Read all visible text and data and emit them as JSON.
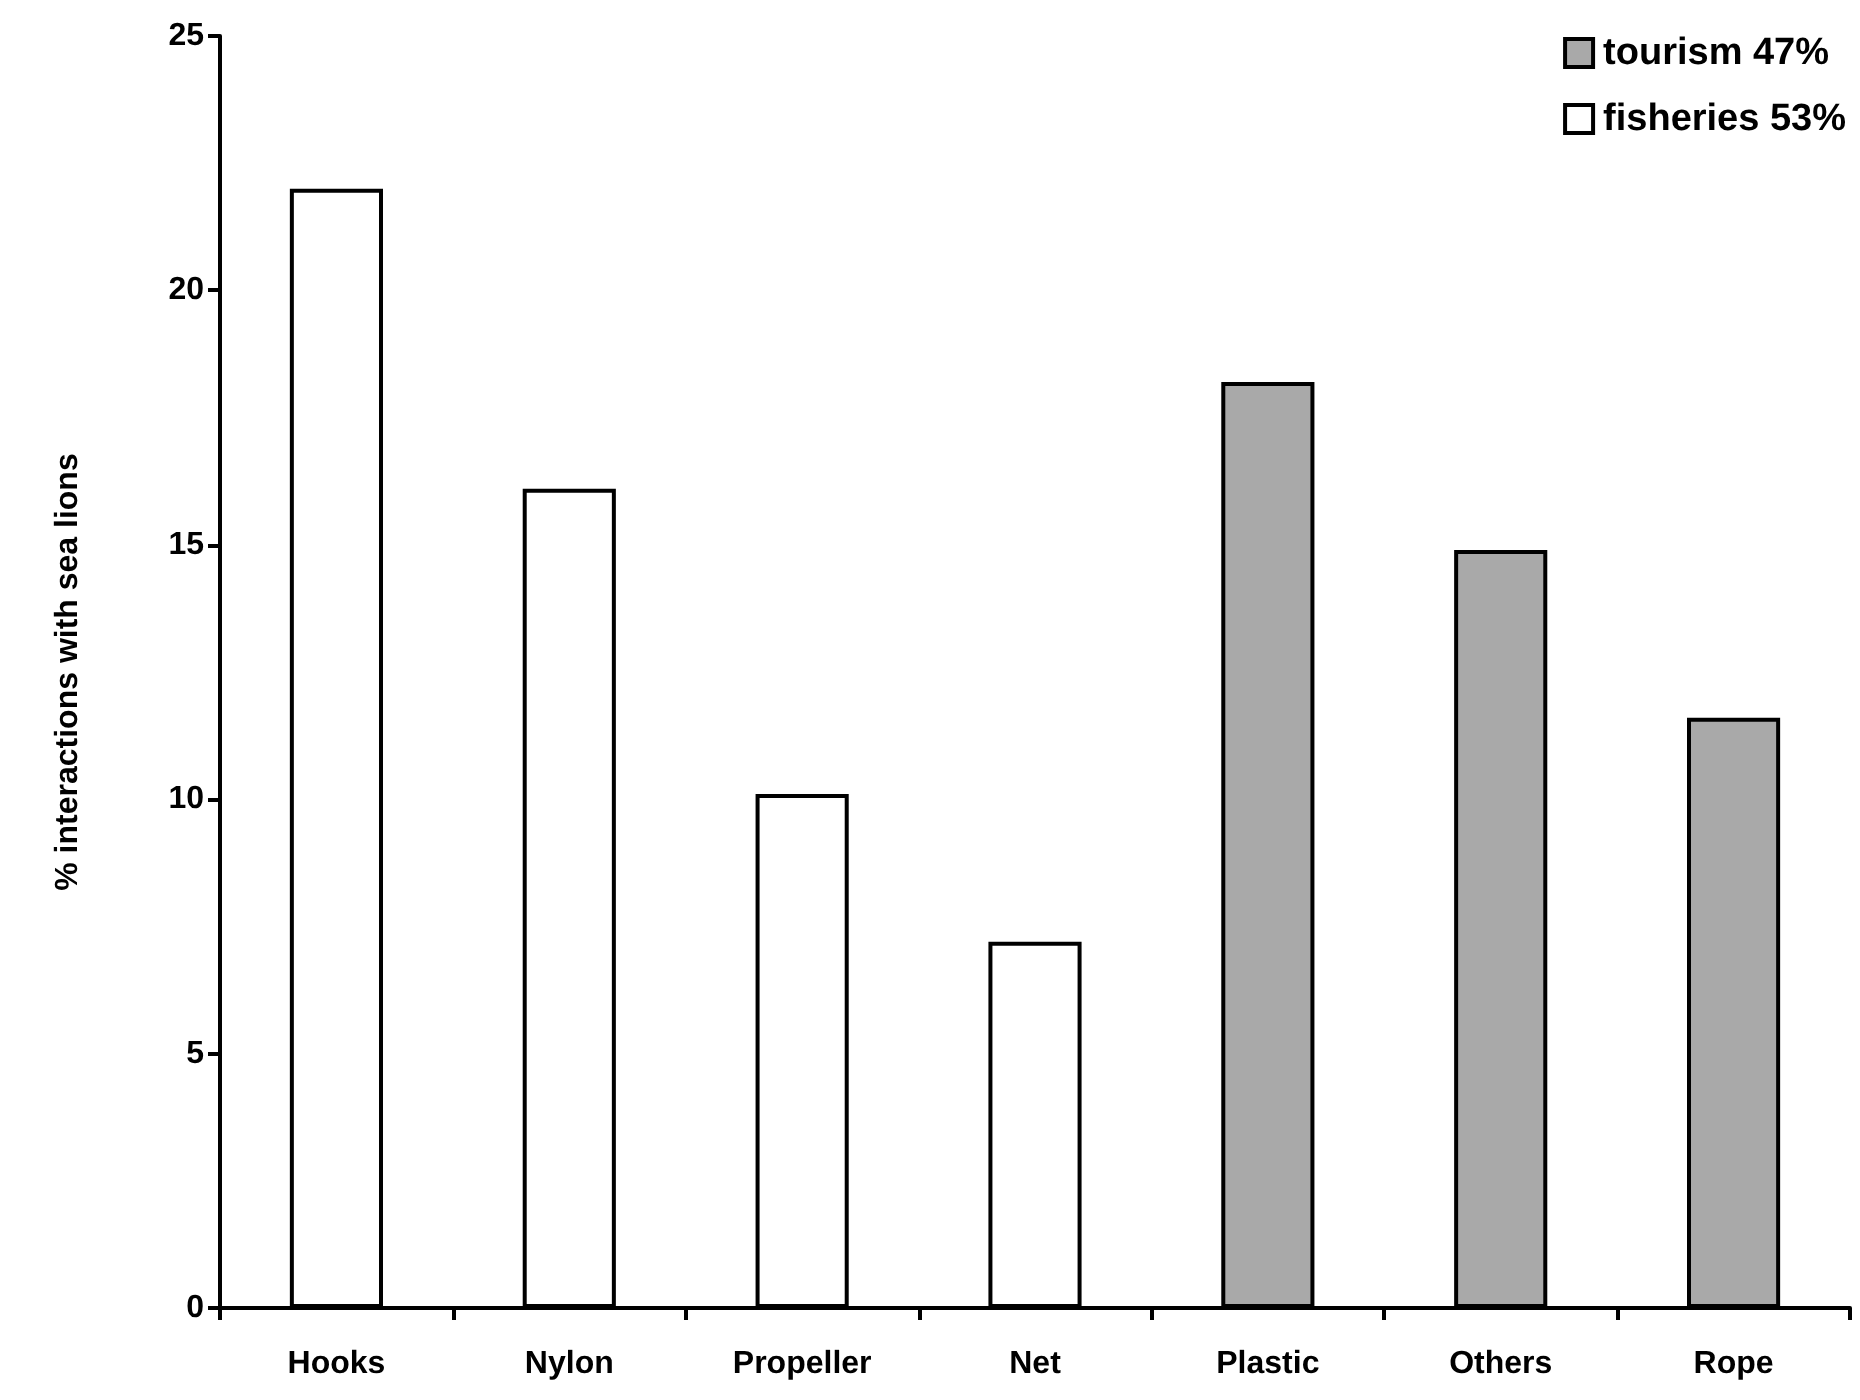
{
  "chart_data": {
    "type": "bar",
    "ylabel": "% interactions with sea lions",
    "categories": [
      "Hooks",
      "Nylon",
      "Propeller",
      "Net",
      "Plastic",
      "Others",
      "Rope"
    ],
    "series": [
      {
        "name": "tourism 47%",
        "color": "#a9a9a9",
        "values": [
          null,
          null,
          null,
          null,
          18.2,
          14.9,
          11.6
        ]
      },
      {
        "name": "fisheries 53%",
        "color": "#ffffff",
        "values": [
          22,
          16.1,
          10.1,
          7.2,
          null,
          null,
          null
        ]
      }
    ],
    "ylim": [
      0,
      25
    ],
    "yticks": [
      0,
      5,
      10,
      15,
      20,
      25
    ],
    "grid": false,
    "legend": "top right"
  }
}
